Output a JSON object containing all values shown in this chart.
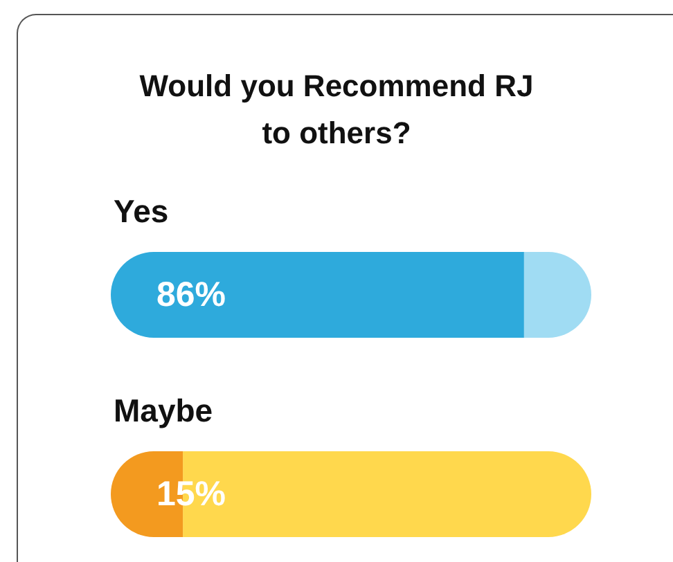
{
  "chart_data": {
    "type": "bar",
    "orientation": "horizontal",
    "stacked": true,
    "title": "Would you Recommend RJ\nto others?",
    "categories": [
      "Yes",
      "Maybe"
    ],
    "xlim": [
      0,
      100
    ],
    "series": [
      {
        "values": [
          86,
          15
        ],
        "value_labels": [
          "86%",
          "15%"
        ],
        "colors": [
          "#2eaadc",
          "#f39a1f"
        ]
      },
      {
        "values": [
          14,
          85
        ],
        "colors": [
          "#a0dcf3",
          "#ffd84d"
        ]
      }
    ]
  }
}
